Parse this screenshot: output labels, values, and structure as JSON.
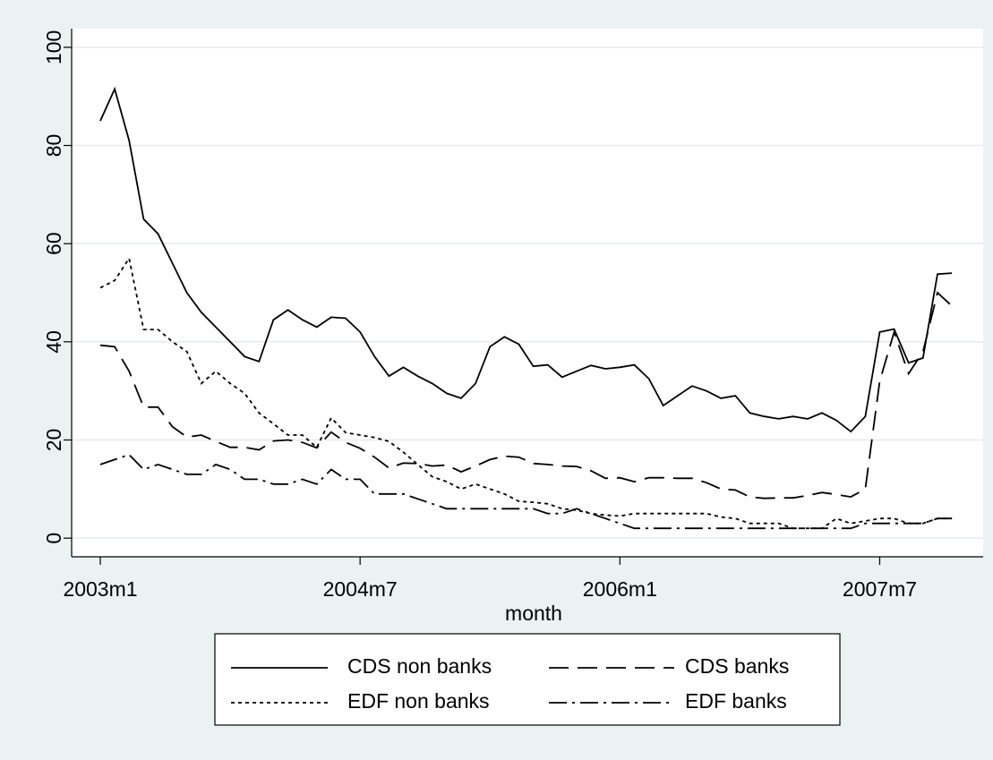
{
  "chart_data": {
    "type": "line",
    "x_label": "month",
    "categories": [
      "2003m1",
      null,
      null,
      null,
      null,
      null,
      null,
      null,
      null,
      null,
      null,
      null,
      null,
      null,
      null,
      null,
      null,
      null,
      "2004m7",
      null,
      null,
      null,
      null,
      null,
      null,
      null,
      null,
      null,
      null,
      null,
      null,
      null,
      null,
      null,
      null,
      null,
      "2006m1",
      null,
      null,
      null,
      null,
      null,
      null,
      null,
      null,
      null,
      null,
      null,
      null,
      null,
      null,
      null,
      null,
      null,
      "2007m7",
      null,
      null,
      null,
      null,
      null
    ],
    "ylim": [
      -3.8,
      103.8
    ],
    "yticks": [
      0,
      20,
      40,
      60,
      80,
      100
    ],
    "grid": true,
    "legend": "bottom",
    "series": [
      {
        "name": "CDS non banks",
        "color": "#000000",
        "line_style": "solid",
        "values": [
          85,
          91.5,
          81,
          65,
          62,
          56,
          50,
          46,
          43,
          40,
          37,
          36,
          44.5,
          46.5,
          44.5,
          43,
          45,
          44.8,
          42,
          37,
          33,
          34.8,
          33,
          31.5,
          29.5,
          28.5,
          31.5,
          39,
          41,
          39.5,
          35,
          35.3,
          32.8,
          34,
          35.2,
          34.5,
          34.8,
          35.3,
          32.5,
          27,
          29,
          31,
          30,
          28.5,
          29,
          25.5,
          24.8,
          24.3,
          24.8,
          24.3,
          25.5,
          24,
          21.7,
          24.8,
          42,
          42.6,
          35.7,
          36.7,
          53.8,
          54
        ]
      },
      {
        "name": "CDS banks",
        "color": "#000000",
        "line_style": "dashed",
        "values": [
          39.3,
          39,
          34,
          26.7,
          26.7,
          22.7,
          20.6,
          21,
          19.7,
          18.5,
          18.5,
          18,
          19.8,
          20,
          19.5,
          18.4,
          21.6,
          19.5,
          18.3,
          16.5,
          14.3,
          15.3,
          15.2,
          14.7,
          14.9,
          13.5,
          14.7,
          16,
          16.7,
          16.5,
          15.2,
          15,
          14.7,
          14.6,
          13.7,
          12.2,
          12.3,
          11.5,
          12.3,
          12.3,
          12.2,
          12.2,
          11.3,
          10,
          9.8,
          8.4,
          8.1,
          8.2,
          8.2,
          8.7,
          9.3,
          8.9,
          8.4,
          10,
          32,
          42,
          33.5,
          38,
          50,
          47.3
        ]
      },
      {
        "name": "EDF non banks",
        "color": "#000000",
        "line_style": "dotted",
        "values": [
          51,
          52.5,
          57,
          42.5,
          42.5,
          40,
          38,
          31.5,
          34,
          31.5,
          29.5,
          25.5,
          23.3,
          21,
          21,
          18.5,
          24.5,
          21.5,
          21,
          20.5,
          19.7,
          17.5,
          15,
          12.5,
          11.5,
          10,
          11,
          10,
          9,
          7.5,
          7.3,
          7,
          6,
          5.7,
          5,
          4.7,
          4.5,
          5,
          5,
          5,
          5,
          5,
          5,
          4.3,
          4,
          3,
          3,
          3,
          2,
          2,
          2,
          4,
          3,
          3.5,
          4,
          4,
          3,
          3,
          4,
          4
        ]
      },
      {
        "name": "EDF banks",
        "color": "#000000",
        "line_style": "dashdot",
        "values": [
          15,
          16,
          17,
          14,
          15,
          14,
          13,
          13,
          15,
          14,
          12,
          12,
          11,
          11,
          12,
          11,
          14,
          12,
          12,
          9,
          9,
          9,
          8,
          7,
          6,
          6,
          6,
          6,
          6,
          6,
          6,
          5,
          5,
          6,
          5,
          4,
          3,
          2,
          2,
          2,
          2,
          2,
          2,
          2,
          2,
          2,
          2,
          2,
          2,
          2,
          2,
          2,
          2,
          3,
          3,
          3,
          3,
          3,
          4,
          4
        ]
      }
    ]
  }
}
